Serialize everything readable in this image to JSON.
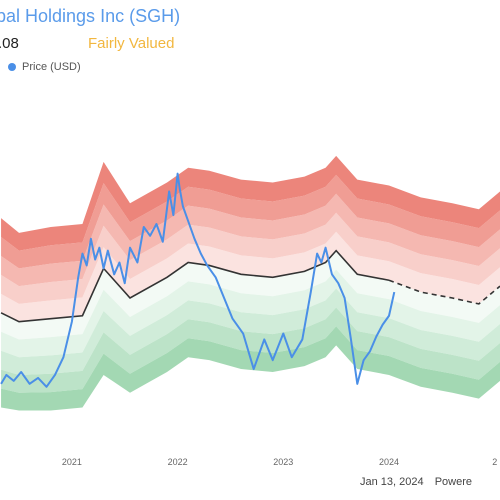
{
  "header": {
    "title": "bal Holdings Inc (SGH)",
    "price": ".08",
    "valuation": "Fairly Valued"
  },
  "footer": {
    "date": "Jan 13, 2024",
    "source": "Powere"
  },
  "colors": {
    "price_line": "#4a8fe7",
    "overvalued": "#f08a82",
    "undervalued": "#8fd1a0",
    "fair_value_line": "#333333",
    "valuation_text": "#f2b73f"
  },
  "chart_data": {
    "type": "line",
    "title": "",
    "xlabel": "",
    "ylabel": "",
    "x_ticks": [
      "2021",
      "2022",
      "2023",
      "2024",
      "2"
    ],
    "legend": [
      "Price (USD)"
    ],
    "legend_placement": "top-left",
    "grid": false,
    "xlim": [
      2020.32,
      2025.05
    ],
    "ylim": [
      0,
      100
    ],
    "series": [
      {
        "name": "Price (USD)",
        "x": [
          2020.33,
          2020.38,
          2020.45,
          2020.52,
          2020.6,
          2020.68,
          2020.76,
          2020.84,
          2020.92,
          2021.0,
          2021.06,
          2021.1,
          2021.14,
          2021.18,
          2021.22,
          2021.26,
          2021.3,
          2021.34,
          2021.4,
          2021.45,
          2021.5,
          2021.55,
          2021.62,
          2021.68,
          2021.74,
          2021.8,
          2021.86,
          2021.92,
          2021.96,
          2022.0,
          2022.02,
          2022.05,
          2022.1,
          2022.16,
          2022.22,
          2022.28,
          2022.36,
          2022.44,
          2022.52,
          2022.62,
          2022.72,
          2022.82,
          2022.9,
          2023.0,
          2023.08,
          2023.18,
          2023.26,
          2023.32,
          2023.36,
          2023.4,
          2023.46,
          2023.52,
          2023.58,
          2023.64,
          2023.7,
          2023.76,
          2023.82,
          2023.88,
          2023.94,
          2024.0,
          2024.05
        ],
        "values": [
          21,
          24,
          22,
          25,
          21,
          23,
          20,
          24,
          30,
          42,
          57,
          65,
          61,
          70,
          63,
          67,
          60,
          66,
          58,
          62,
          55,
          67,
          62,
          74,
          71,
          75,
          69,
          86,
          78,
          92,
          87,
          81,
          76,
          70,
          65,
          61,
          57,
          50,
          43,
          38,
          26,
          36,
          29,
          38,
          30,
          36,
          52,
          65,
          62,
          67,
          58,
          55,
          50,
          36,
          21,
          29,
          32,
          37,
          41,
          44,
          52
        ]
      },
      {
        "name": "Fair Value",
        "x": [
          2020.33,
          2020.5,
          2020.8,
          2021.1,
          2021.3,
          2021.55,
          2021.9,
          2022.1,
          2022.3,
          2022.6,
          2022.9,
          2023.2,
          2023.4,
          2023.5,
          2023.7,
          2024.0,
          2024.3,
          2024.6,
          2024.85,
          2025.05
        ],
        "values": [
          45,
          42,
          43,
          44,
          60,
          50,
          57,
          62,
          61,
          58,
          57,
          59,
          62,
          66,
          58,
          56,
          52,
          50,
          48,
          54
        ]
      },
      {
        "name": "Overvalued Upper",
        "x": [
          2020.33,
          2020.5,
          2020.8,
          2021.1,
          2021.3,
          2021.55,
          2021.9,
          2022.1,
          2022.3,
          2022.6,
          2022.9,
          2023.2,
          2023.4,
          2023.5,
          2023.7,
          2024.0,
          2024.3,
          2024.6,
          2024.85,
          2025.05
        ],
        "values": [
          77,
          72,
          74,
          75,
          96,
          82,
          89,
          94,
          93,
          90,
          89,
          91,
          94,
          98,
          90,
          88,
          84,
          82,
          80,
          86
        ]
      },
      {
        "name": "Undervalued Lower",
        "x": [
          2020.33,
          2020.5,
          2020.8,
          2021.1,
          2021.3,
          2021.55,
          2021.9,
          2022.1,
          2022.3,
          2022.6,
          2022.9,
          2023.2,
          2023.4,
          2023.5,
          2023.7,
          2024.0,
          2024.3,
          2024.6,
          2024.85,
          2025.05
        ],
        "values": [
          13,
          12,
          12,
          13,
          24,
          18,
          25,
          30,
          29,
          26,
          25,
          27,
          30,
          34,
          26,
          24,
          20,
          18,
          16,
          22
        ]
      }
    ],
    "forecast_from_x": 2024.05
  }
}
